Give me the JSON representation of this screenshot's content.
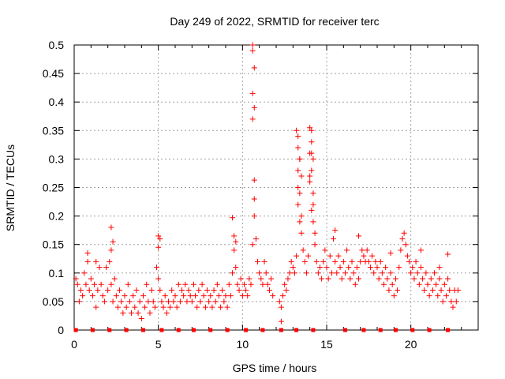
{
  "chart_data": {
    "type": "scatter",
    "title": "Day 249 of 2022, SRMTID for receiver terc",
    "xlabel": "GPS time / hours",
    "ylabel": "SRMTID / TECUs",
    "xlim": [
      0,
      24
    ],
    "ylim": [
      0,
      0.5
    ],
    "x_ticks": [
      "0",
      "5",
      "10",
      "15",
      "20"
    ],
    "y_ticks": [
      "0",
      "0.05",
      "0.1",
      "0.15",
      "0.2",
      "0.25",
      "0.3",
      "0.35",
      "0.4",
      "0.45",
      "0.5"
    ],
    "grid": true,
    "marker": "plus",
    "colors": {
      "points": "#ff0000",
      "grid": "#a0a0a0",
      "axes": "#000000"
    },
    "baseline_markers": {
      "y": 0,
      "x": [
        0.1,
        1.1,
        2.1,
        3.1,
        4.1,
        5.2,
        6.2,
        7.1,
        8.1,
        9.1,
        10.2,
        11.2,
        12.3,
        13.2,
        14.2,
        16.1,
        17.2,
        18.2,
        19.1,
        20.1,
        21.1,
        22.2
      ]
    },
    "series": [
      {
        "points": [
          [
            0.1,
            0.09
          ],
          [
            0.2,
            0.08
          ],
          [
            0.3,
            0.05
          ],
          [
            0.4,
            0.07
          ],
          [
            0.5,
            0.06
          ],
          [
            0.6,
            0.1
          ],
          [
            0.7,
            0.08
          ],
          [
            0.8,
            0.12
          ],
          [
            0.9,
            0.07
          ],
          [
            1.0,
            0.09
          ],
          [
            1.1,
            0.06
          ],
          [
            1.2,
            0.08
          ],
          [
            1.3,
            0.04
          ],
          [
            1.4,
            0.07
          ],
          [
            1.5,
            0.11
          ],
          [
            1.6,
            0.08
          ],
          [
            1.7,
            0.06
          ],
          [
            1.8,
            0.05
          ],
          [
            1.9,
            0.11
          ],
          [
            2.0,
            0.07
          ],
          [
            2.1,
            0.12
          ],
          [
            2.2,
            0.08
          ],
          [
            2.3,
            0.05
          ],
          [
            2.4,
            0.09
          ],
          [
            2.5,
            0.06
          ],
          [
            2.6,
            0.04
          ],
          [
            2.7,
            0.07
          ],
          [
            2.8,
            0.05
          ],
          [
            2.9,
            0.03
          ],
          [
            3.0,
            0.06
          ],
          [
            3.1,
            0.04
          ],
          [
            3.2,
            0.08
          ],
          [
            3.3,
            0.05
          ],
          [
            3.4,
            0.03
          ],
          [
            3.5,
            0.06
          ],
          [
            3.6,
            0.04
          ],
          [
            3.7,
            0.07
          ],
          [
            3.8,
            0.03
          ],
          [
            3.9,
            0.05
          ],
          [
            4.0,
            0.02
          ],
          [
            4.1,
            0.06
          ],
          [
            4.2,
            0.04
          ],
          [
            4.3,
            0.08
          ],
          [
            4.4,
            0.05
          ],
          [
            4.5,
            0.03
          ],
          [
            4.6,
            0.07
          ],
          [
            4.7,
            0.05
          ],
          [
            4.8,
            0.04
          ],
          [
            4.9,
            0.11
          ],
          [
            5.0,
            0.09
          ],
          [
            5.1,
            0.07
          ],
          [
            5.2,
            0.05
          ],
          [
            5.3,
            0.04
          ],
          [
            5.4,
            0.06
          ],
          [
            5.5,
            0.03
          ],
          [
            5.6,
            0.05
          ],
          [
            5.7,
            0.04
          ],
          [
            5.8,
            0.07
          ],
          [
            5.9,
            0.05
          ],
          [
            6.0,
            0.06
          ],
          [
            6.1,
            0.04
          ],
          [
            6.2,
            0.08
          ],
          [
            6.3,
            0.05
          ],
          [
            6.4,
            0.07
          ],
          [
            6.5,
            0.06
          ],
          [
            6.6,
            0.08
          ],
          [
            6.7,
            0.05
          ],
          [
            6.8,
            0.07
          ],
          [
            6.9,
            0.06
          ],
          [
            7.0,
            0.05
          ],
          [
            7.1,
            0.08
          ],
          [
            7.2,
            0.06
          ],
          [
            7.3,
            0.04
          ],
          [
            7.4,
            0.07
          ],
          [
            7.5,
            0.05
          ],
          [
            7.6,
            0.08
          ],
          [
            7.7,
            0.06
          ],
          [
            7.8,
            0.04
          ],
          [
            7.9,
            0.07
          ],
          [
            8.0,
            0.05
          ],
          [
            8.1,
            0.06
          ],
          [
            8.2,
            0.04
          ],
          [
            8.3,
            0.07
          ],
          [
            8.4,
            0.05
          ],
          [
            8.5,
            0.08
          ],
          [
            8.6,
            0.06
          ],
          [
            8.7,
            0.04
          ],
          [
            8.8,
            0.07
          ],
          [
            8.9,
            0.05
          ],
          [
            9.0,
            0.06
          ],
          [
            9.1,
            0.04
          ],
          [
            9.2,
            0.08
          ],
          [
            9.3,
            0.06
          ],
          [
            9.4,
            0.1
          ],
          [
            9.5,
            0.14
          ],
          [
            9.6,
            0.11
          ],
          [
            9.7,
            0.08
          ],
          [
            9.8,
            0.07
          ],
          [
            9.9,
            0.09
          ],
          [
            10.0,
            0.06
          ],
          [
            10.1,
            0.08
          ],
          [
            10.2,
            0.07
          ],
          [
            10.3,
            0.06
          ],
          [
            10.4,
            0.09
          ],
          [
            10.5,
            0.08
          ],
          [
            10.6,
            0.15
          ],
          [
            10.7,
            0.2
          ],
          [
            10.8,
            0.16
          ],
          [
            10.9,
            0.12
          ],
          [
            11.0,
            0.1
          ],
          [
            11.1,
            0.09
          ],
          [
            11.2,
            0.08
          ],
          [
            11.3,
            0.12
          ],
          [
            11.4,
            0.1
          ],
          [
            11.5,
            0.08
          ],
          [
            11.6,
            0.07
          ],
          [
            11.7,
            0.09
          ],
          [
            11.8,
            0.06
          ],
          [
            12.2,
            0.05
          ],
          [
            12.3,
            0.04
          ],
          [
            12.4,
            0.06
          ],
          [
            12.5,
            0.08
          ],
          [
            12.6,
            0.07
          ],
          [
            12.7,
            0.09
          ],
          [
            12.8,
            0.1
          ],
          [
            12.9,
            0.12
          ],
          [
            13.0,
            0.11
          ],
          [
            13.1,
            0.1
          ],
          [
            13.2,
            0.13
          ],
          [
            13.3,
            0.25
          ],
          [
            13.4,
            0.3
          ],
          [
            13.5,
            0.2
          ],
          [
            13.6,
            0.14
          ],
          [
            13.7,
            0.12
          ],
          [
            13.8,
            0.1
          ],
          [
            13.9,
            0.13
          ],
          [
            14.0,
            0.26
          ],
          [
            14.1,
            0.31
          ],
          [
            14.2,
            0.22
          ],
          [
            14.3,
            0.15
          ],
          [
            14.4,
            0.12
          ],
          [
            14.5,
            0.1
          ],
          [
            14.6,
            0.11
          ],
          [
            14.7,
            0.09
          ],
          [
            14.8,
            0.12
          ],
          [
            14.9,
            0.14
          ],
          [
            15.0,
            0.11
          ],
          [
            15.1,
            0.09
          ],
          [
            15.2,
            0.13
          ],
          [
            15.3,
            0.1
          ],
          [
            15.4,
            0.16
          ],
          [
            15.5,
            0.12
          ],
          [
            15.6,
            0.1
          ],
          [
            15.7,
            0.13
          ],
          [
            15.8,
            0.11
          ],
          [
            15.9,
            0.09
          ],
          [
            16.0,
            0.12
          ],
          [
            16.1,
            0.1
          ],
          [
            16.2,
            0.14
          ],
          [
            16.3,
            0.11
          ],
          [
            16.4,
            0.09
          ],
          [
            16.5,
            0.12
          ],
          [
            16.6,
            0.1
          ],
          [
            16.7,
            0.08
          ],
          [
            16.8,
            0.11
          ],
          [
            16.9,
            0.09
          ],
          [
            17.0,
            0.12
          ],
          [
            17.1,
            0.14
          ],
          [
            17.2,
            0.13
          ],
          [
            17.3,
            0.12
          ],
          [
            17.4,
            0.14
          ],
          [
            17.5,
            0.12
          ],
          [
            17.6,
            0.11
          ],
          [
            17.7,
            0.13
          ],
          [
            17.8,
            0.1
          ],
          [
            17.9,
            0.12
          ],
          [
            18.0,
            0.11
          ],
          [
            18.1,
            0.09
          ],
          [
            18.2,
            0.12
          ],
          [
            18.3,
            0.1
          ],
          [
            18.4,
            0.08
          ],
          [
            18.5,
            0.11
          ],
          [
            18.6,
            0.09
          ],
          [
            18.7,
            0.07
          ],
          [
            18.8,
            0.1
          ],
          [
            18.9,
            0.08
          ],
          [
            19.0,
            0.06
          ],
          [
            19.1,
            0.09
          ],
          [
            19.2,
            0.07
          ],
          [
            19.3,
            0.11
          ],
          [
            19.4,
            0.14
          ],
          [
            19.5,
            0.16
          ],
          [
            19.6,
            0.17
          ],
          [
            19.7,
            0.15
          ],
          [
            19.8,
            0.13
          ],
          [
            19.9,
            0.12
          ],
          [
            20.0,
            0.1
          ],
          [
            20.1,
            0.11
          ],
          [
            20.2,
            0.09
          ],
          [
            20.3,
            0.12
          ],
          [
            20.4,
            0.1
          ],
          [
            20.5,
            0.08
          ],
          [
            20.6,
            0.11
          ],
          [
            20.7,
            0.09
          ],
          [
            20.8,
            0.07
          ],
          [
            20.9,
            0.1
          ],
          [
            21.0,
            0.08
          ],
          [
            21.1,
            0.06
          ],
          [
            21.2,
            0.09
          ],
          [
            21.3,
            0.07
          ],
          [
            21.4,
            0.1
          ],
          [
            21.5,
            0.08
          ],
          [
            21.6,
            0.06
          ],
          [
            21.7,
            0.09
          ],
          [
            21.8,
            0.07
          ],
          [
            21.9,
            0.05
          ],
          [
            22.0,
            0.08
          ],
          [
            22.1,
            0.06
          ],
          [
            22.2,
            0.09
          ],
          [
            22.3,
            0.07
          ],
          [
            22.4,
            0.05
          ],
          [
            22.5,
            0.04
          ],
          [
            22.6,
            0.07
          ],
          [
            22.7,
            0.05
          ],
          [
            22.8,
            0.07
          ],
          [
            10.6,
            0.5
          ],
          [
            10.6,
            0.49
          ],
          [
            10.7,
            0.46
          ],
          [
            10.6,
            0.415
          ],
          [
            10.7,
            0.39
          ],
          [
            10.6,
            0.37
          ],
          [
            10.7,
            0.263
          ],
          [
            10.7,
            0.23
          ],
          [
            13.2,
            0.35
          ],
          [
            13.3,
            0.34
          ],
          [
            13.3,
            0.32
          ],
          [
            13.4,
            0.3
          ],
          [
            13.3,
            0.28
          ],
          [
            13.5,
            0.27
          ],
          [
            13.4,
            0.24
          ],
          [
            13.3,
            0.22
          ],
          [
            13.4,
            0.19
          ],
          [
            13.5,
            0.17
          ],
          [
            14.0,
            0.355
          ],
          [
            14.1,
            0.35
          ],
          [
            14.1,
            0.33
          ],
          [
            14.0,
            0.31
          ],
          [
            14.2,
            0.3
          ],
          [
            14.1,
            0.28
          ],
          [
            14.0,
            0.27
          ],
          [
            14.2,
            0.24
          ],
          [
            14.1,
            0.21
          ],
          [
            14.2,
            0.19
          ],
          [
            14.3,
            0.17
          ],
          [
            2.2,
            0.18
          ],
          [
            2.3,
            0.155
          ],
          [
            2.2,
            0.14
          ],
          [
            5.0,
            0.165
          ],
          [
            5.1,
            0.16
          ],
          [
            5.0,
            0.145
          ],
          [
            9.4,
            0.197
          ],
          [
            9.5,
            0.165
          ],
          [
            9.6,
            0.155
          ],
          [
            12.3,
            0.015
          ],
          [
            22.2,
            0.133
          ],
          [
            21.7,
            0.11
          ],
          [
            18.8,
            0.135
          ],
          [
            15.5,
            0.175
          ],
          [
            16.9,
            0.165
          ],
          [
            20.6,
            0.14
          ],
          [
            1.3,
            0.12
          ],
          [
            0.8,
            0.135
          ]
        ]
      }
    ]
  }
}
